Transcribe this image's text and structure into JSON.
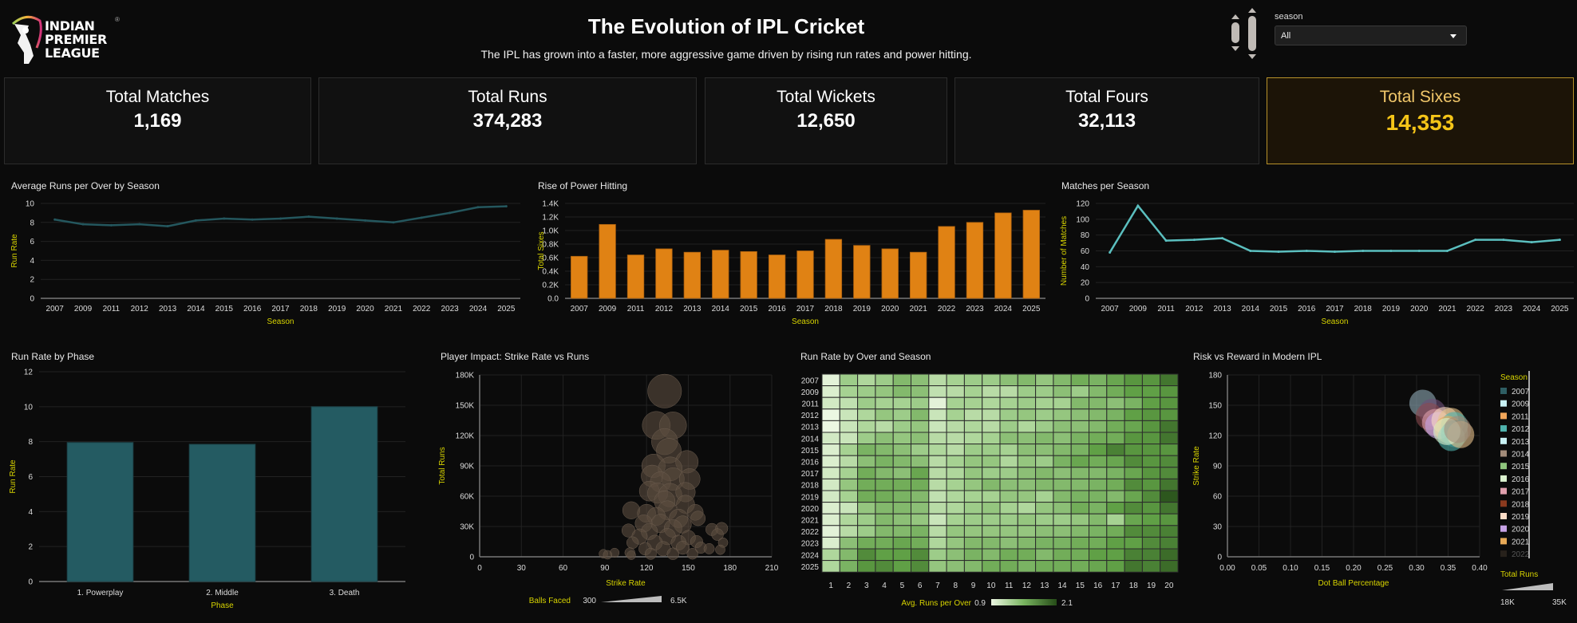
{
  "header": {
    "logo_lines": [
      "INDIAN",
      "PREMIER",
      "LEAGUE"
    ],
    "logo_mark": "®",
    "title": "The Evolution of IPL Cricket",
    "subtitle": "The IPL has grown into a faster, more aggressive game driven by rising run rates and power hitting."
  },
  "filter": {
    "label": "season",
    "selected": "All"
  },
  "kpis": [
    {
      "label": "Total Matches",
      "value": "1,169"
    },
    {
      "label": "Total Runs",
      "value": "374,283"
    },
    {
      "label": "Total Wickets",
      "value": "12,650"
    },
    {
      "label": "Total Fours",
      "value": "32,113"
    },
    {
      "label": "Total Sixes",
      "value": "14,353",
      "highlight": true
    }
  ],
  "colors": {
    "teal_line": "#24575e",
    "orange_bar": "#e08214",
    "cyan_line": "#5bbfbf",
    "phase_bar": "#245b62",
    "bubble": "#5b4d40",
    "accent_yellow": "#d8d400",
    "highlight_gold": "#f5c518"
  },
  "chart_data": [
    {
      "id": "runrate_season",
      "type": "line",
      "title": "Average Runs per Over by Season",
      "xlabel": "Season",
      "ylabel": "Run Rate",
      "categories": [
        "2007",
        "2009",
        "2011",
        "2012",
        "2013",
        "2014",
        "2015",
        "2016",
        "2017",
        "2018",
        "2019",
        "2020",
        "2021",
        "2022",
        "2023",
        "2024",
        "2025"
      ],
      "values": [
        8.3,
        7.8,
        7.7,
        7.8,
        7.6,
        8.2,
        8.4,
        8.3,
        8.4,
        8.6,
        8.4,
        8.2,
        8.0,
        8.5,
        9.0,
        9.6,
        9.7
      ],
      "ylim": [
        0,
        10
      ],
      "yticks": [
        "0",
        "2",
        "4",
        "6",
        "8",
        "10"
      ],
      "grid": true
    },
    {
      "id": "sixes_season",
      "type": "bar",
      "title": "Rise of Power Hitting",
      "xlabel": "Season",
      "ylabel": "Total Sixes",
      "categories": [
        "2007",
        "2009",
        "2011",
        "2012",
        "2013",
        "2014",
        "2015",
        "2016",
        "2017",
        "2018",
        "2019",
        "2020",
        "2021",
        "2022",
        "2023",
        "2024",
        "2025"
      ],
      "values": [
        620,
        1090,
        640,
        730,
        680,
        710,
        690,
        640,
        700,
        870,
        780,
        730,
        680,
        1060,
        1120,
        1260,
        1300
      ],
      "ylim": [
        0,
        1400
      ],
      "yticks": [
        "0.0",
        "0.2K",
        "0.4K",
        "0.6K",
        "0.8K",
        "1.0K",
        "1.2K",
        "1.4K"
      ],
      "grid": true
    },
    {
      "id": "matches_season",
      "type": "line",
      "title": "Matches per Season",
      "xlabel": "Season",
      "ylabel": "Number of Matches",
      "categories": [
        "2007",
        "2009",
        "2011",
        "2012",
        "2013",
        "2014",
        "2015",
        "2016",
        "2017",
        "2018",
        "2019",
        "2020",
        "2021",
        "2022",
        "2023",
        "2024",
        "2025"
      ],
      "values": [
        58,
        117,
        73,
        74,
        76,
        60,
        59,
        60,
        59,
        60,
        60,
        60,
        60,
        74,
        74,
        71,
        74
      ],
      "ylim": [
        0,
        120
      ],
      "yticks": [
        "0",
        "20",
        "40",
        "60",
        "80",
        "100",
        "120"
      ],
      "grid": true
    },
    {
      "id": "phase",
      "type": "bar",
      "title": "Run Rate by Phase",
      "xlabel": "Phase",
      "ylabel": "Run Rate",
      "categories": [
        "1. Powerplay",
        "2. Middle",
        "3. Death"
      ],
      "values": [
        7.95,
        7.85,
        10.0
      ],
      "ylim": [
        0,
        12
      ],
      "yticks": [
        "0",
        "2",
        "4",
        "6",
        "8",
        "10",
        "12"
      ],
      "grid": true
    },
    {
      "id": "player_impact",
      "type": "scatter",
      "title": "Player Impact: Strike Rate vs Runs",
      "xlabel": "Strike Rate",
      "ylabel": "Total Runs",
      "xlim": [
        0,
        210
      ],
      "ylim": [
        0,
        180000
      ],
      "xticks": [
        "0",
        "30",
        "60",
        "90",
        "120",
        "150",
        "180",
        "210"
      ],
      "yticks": [
        "0",
        "30K",
        "60K",
        "90K",
        "120K",
        "150K",
        "180K"
      ],
      "size_legend": {
        "label": "Balls Faced",
        "min": "300",
        "max": "6.5K"
      },
      "points": [
        [
          133,
          164000,
          6.5
        ],
        [
          127,
          130000,
          5.2
        ],
        [
          139,
          130000,
          5.0
        ],
        [
          133,
          114000,
          4.8
        ],
        [
          136,
          105000,
          4.5
        ],
        [
          149,
          94000,
          4.0
        ],
        [
          125,
          90000,
          4.2
        ],
        [
          137,
          87000,
          4.3
        ],
        [
          124,
          80000,
          3.8
        ],
        [
          139,
          77000,
          4.0
        ],
        [
          151,
          77000,
          3.6
        ],
        [
          130,
          74000,
          3.5
        ],
        [
          122,
          65000,
          3.4
        ],
        [
          128,
          63000,
          3.5
        ],
        [
          137,
          61000,
          4.2
        ],
        [
          148,
          64000,
          3.3
        ],
        [
          133,
          55000,
          3.6
        ],
        [
          148,
          52000,
          3.0
        ],
        [
          109,
          46000,
          2.8
        ],
        [
          120,
          43000,
          3.0
        ],
        [
          135,
          46000,
          3.2
        ],
        [
          155,
          44000,
          2.5
        ],
        [
          127,
          40000,
          3.0
        ],
        [
          143,
          38000,
          3.1
        ],
        [
          157,
          38000,
          2.2
        ],
        [
          118,
          33000,
          2.8
        ],
        [
          130,
          33000,
          3.1
        ],
        [
          146,
          32000,
          2.8
        ],
        [
          139,
          28000,
          2.9
        ],
        [
          107,
          26000,
          1.9
        ],
        [
          122,
          25000,
          2.6
        ],
        [
          167,
          27000,
          1.7
        ],
        [
          174,
          28000,
          1.7
        ],
        [
          171,
          22000,
          1.6
        ],
        [
          115,
          20000,
          2.4
        ],
        [
          135,
          20000,
          2.6
        ],
        [
          150,
          19000,
          2.2
        ],
        [
          110,
          14000,
          1.6
        ],
        [
          126,
          14000,
          2.3
        ],
        [
          143,
          14000,
          2.3
        ],
        [
          156,
          15000,
          1.7
        ],
        [
          175,
          14000,
          1.1
        ],
        [
          119,
          8000,
          1.8
        ],
        [
          132,
          8000,
          2.2
        ],
        [
          146,
          9000,
          1.9
        ],
        [
          159,
          9000,
          1.5
        ],
        [
          165,
          8000,
          1.3
        ],
        [
          173,
          7000,
          1.1
        ],
        [
          97,
          4000,
          1.0
        ],
        [
          108,
          4000,
          1.2
        ],
        [
          89,
          3000,
          0.9
        ],
        [
          92,
          2000,
          0.9
        ],
        [
          123,
          3000,
          1.5
        ],
        [
          139,
          3000,
          1.6
        ],
        [
          153,
          3000,
          1.4
        ],
        [
          109,
          1500,
          0.9
        ]
      ]
    },
    {
      "id": "over_heatmap",
      "type": "heatmap",
      "title": "Run Rate by Over and Season",
      "xlabel": "",
      "ylabel": "",
      "x": [
        "1",
        "2",
        "3",
        "4",
        "5",
        "6",
        "7",
        "8",
        "9",
        "10",
        "11",
        "12",
        "13",
        "14",
        "15",
        "16",
        "17",
        "18",
        "19",
        "20"
      ],
      "y": [
        "2007",
        "2009",
        "2011",
        "2012",
        "2013",
        "2014",
        "2015",
        "2016",
        "2017",
        "2018",
        "2019",
        "2020",
        "2021",
        "2022",
        "2023",
        "2024",
        "2025"
      ],
      "legend": {
        "label": "Avg. Runs per Over",
        "min": "0.9",
        "max": "2.1"
      },
      "range": [
        0.9,
        2.1
      ],
      "values": [
        [
          0.95,
          1.35,
          1.25,
          1.35,
          1.5,
          1.45,
          1.2,
          1.3,
          1.35,
          1.35,
          1.45,
          1.5,
          1.4,
          1.5,
          1.6,
          1.55,
          1.65,
          1.75,
          1.75,
          1.9
        ],
        [
          1.0,
          1.3,
          1.35,
          1.4,
          1.5,
          1.45,
          1.15,
          1.2,
          1.3,
          1.2,
          1.2,
          1.35,
          1.35,
          1.45,
          1.35,
          1.5,
          1.6,
          1.7,
          1.7,
          1.75
        ],
        [
          1.05,
          1.15,
          1.35,
          1.3,
          1.3,
          1.35,
          0.95,
          1.3,
          1.3,
          1.25,
          1.3,
          1.35,
          1.3,
          1.3,
          1.5,
          1.5,
          1.45,
          1.55,
          1.7,
          1.75
        ],
        [
          0.9,
          1.1,
          1.25,
          1.4,
          1.35,
          1.5,
          1.1,
          1.3,
          1.2,
          1.2,
          1.35,
          1.4,
          1.35,
          1.4,
          1.45,
          1.5,
          1.55,
          1.7,
          1.75,
          1.75
        ],
        [
          0.9,
          1.1,
          1.25,
          1.2,
          1.35,
          1.4,
          1.1,
          1.2,
          1.25,
          1.2,
          1.35,
          1.25,
          1.35,
          1.45,
          1.45,
          1.5,
          1.6,
          1.65,
          1.75,
          1.9
        ],
        [
          1.05,
          1.1,
          1.35,
          1.45,
          1.4,
          1.45,
          1.2,
          1.2,
          1.25,
          1.3,
          1.45,
          1.45,
          1.5,
          1.45,
          1.55,
          1.6,
          1.6,
          1.75,
          1.75,
          1.9
        ],
        [
          1.0,
          1.3,
          1.55,
          1.5,
          1.45,
          1.35,
          1.25,
          1.2,
          1.35,
          1.35,
          1.3,
          1.45,
          1.45,
          1.5,
          1.55,
          1.7,
          1.85,
          1.75,
          1.75,
          1.75
        ],
        [
          1.0,
          1.2,
          1.45,
          1.55,
          1.5,
          1.45,
          1.2,
          1.3,
          1.4,
          1.4,
          1.25,
          1.4,
          1.35,
          1.55,
          1.65,
          1.6,
          1.65,
          1.8,
          1.75,
          1.8
        ],
        [
          1.05,
          1.3,
          1.6,
          1.5,
          1.45,
          1.65,
          1.2,
          1.25,
          1.4,
          1.35,
          1.35,
          1.45,
          1.5,
          1.45,
          1.5,
          1.5,
          1.55,
          1.65,
          1.75,
          1.8
        ],
        [
          1.05,
          1.4,
          1.6,
          1.6,
          1.6,
          1.6,
          1.2,
          1.3,
          1.4,
          1.5,
          1.45,
          1.45,
          1.5,
          1.5,
          1.5,
          1.55,
          1.6,
          1.8,
          1.75,
          1.9
        ],
        [
          1.05,
          1.3,
          1.6,
          1.6,
          1.55,
          1.5,
          1.15,
          1.25,
          1.3,
          1.3,
          1.4,
          1.4,
          1.3,
          1.5,
          1.55,
          1.55,
          1.5,
          1.65,
          1.8,
          2.05
        ],
        [
          1.0,
          1.1,
          1.4,
          1.5,
          1.5,
          1.45,
          1.2,
          1.25,
          1.35,
          1.4,
          1.3,
          1.25,
          1.4,
          1.45,
          1.6,
          1.55,
          1.7,
          1.8,
          1.75,
          1.9
        ],
        [
          1.0,
          1.25,
          1.35,
          1.5,
          1.45,
          1.4,
          1.1,
          1.3,
          1.35,
          1.35,
          1.35,
          1.4,
          1.35,
          1.35,
          1.4,
          1.5,
          1.3,
          1.65,
          1.7,
          1.75
        ],
        [
          0.95,
          1.2,
          1.35,
          1.5,
          1.5,
          1.55,
          1.2,
          1.4,
          1.4,
          1.4,
          1.4,
          1.4,
          1.45,
          1.45,
          1.5,
          1.55,
          1.6,
          1.8,
          1.8,
          1.85
        ],
        [
          1.0,
          1.45,
          1.6,
          1.6,
          1.65,
          1.6,
          1.25,
          1.4,
          1.5,
          1.5,
          1.45,
          1.5,
          1.55,
          1.55,
          1.6,
          1.6,
          1.7,
          1.7,
          1.8,
          1.85
        ],
        [
          1.25,
          1.5,
          1.8,
          1.7,
          1.7,
          1.8,
          1.35,
          1.45,
          1.55,
          1.5,
          1.6,
          1.6,
          1.5,
          1.6,
          1.6,
          1.7,
          1.7,
          1.85,
          1.85,
          1.95
        ],
        [
          1.25,
          1.55,
          1.75,
          1.8,
          1.7,
          1.8,
          1.4,
          1.45,
          1.5,
          1.6,
          1.6,
          1.55,
          1.6,
          1.6,
          1.6,
          1.65,
          1.7,
          1.9,
          1.85,
          1.95
        ]
      ]
    },
    {
      "id": "risk_reward",
      "type": "scatter",
      "title": "Risk vs Reward in Modern IPL",
      "xlabel": "Dot Ball Percentage",
      "ylabel": "Strike Rate",
      "xlim": [
        0,
        0.4
      ],
      "ylim": [
        0,
        180
      ],
      "xticks": [
        "0.00",
        "0.05",
        "0.10",
        "0.15",
        "0.20",
        "0.25",
        "0.30",
        "0.35",
        "0.40"
      ],
      "yticks": [
        "0",
        "30",
        "60",
        "90",
        "120",
        "150",
        "180"
      ],
      "legend_title": "Season",
      "legend": [
        {
          "season": "2007",
          "color": "#2e5e63"
        },
        {
          "season": "2009",
          "color": "#c8f1f4"
        },
        {
          "season": "2011",
          "color": "#f2a65a"
        },
        {
          "season": "2012",
          "color": "#4fb3ad"
        },
        {
          "season": "2013",
          "color": "#c8f1f4"
        },
        {
          "season": "2014",
          "color": "#a28b79"
        },
        {
          "season": "2015",
          "color": "#8fc57d"
        },
        {
          "season": "2016",
          "color": "#dcf3d0"
        },
        {
          "season": "2017",
          "color": "#e0a0ad"
        },
        {
          "season": "2018",
          "color": "#8b3a1e"
        },
        {
          "season": "2019",
          "color": "#fcdcc6"
        },
        {
          "season": "2020",
          "color": "#c7a3e6"
        },
        {
          "season": "2021",
          "color": "#e7a957"
        },
        {
          "season": "2022",
          "color": "#5b4a3a"
        }
      ],
      "size_legend": {
        "label": "Total Runs",
        "min": "18K",
        "max": "35K"
      },
      "points": [
        [
          0.31,
          152,
          "#8faab6"
        ],
        [
          0.325,
          143,
          "#6d4e78"
        ],
        [
          0.32,
          139,
          "#8b4a4e"
        ],
        [
          0.33,
          133,
          "#e0a0ad"
        ],
        [
          0.335,
          130,
          "#c7a3e6"
        ],
        [
          0.345,
          135,
          "#fcdcc6"
        ],
        [
          0.355,
          134,
          "#e7c48a"
        ],
        [
          0.36,
          130,
          "#4fb3ad"
        ],
        [
          0.35,
          126,
          "#e7a957"
        ],
        [
          0.36,
          122,
          "#2e7f80"
        ],
        [
          0.355,
          118,
          "#4fb3ad"
        ],
        [
          0.37,
          121,
          "#e8c28c"
        ],
        [
          0.348,
          124,
          "#dcf3d0"
        ],
        [
          0.365,
          126,
          "#a28b79"
        ]
      ]
    }
  ]
}
